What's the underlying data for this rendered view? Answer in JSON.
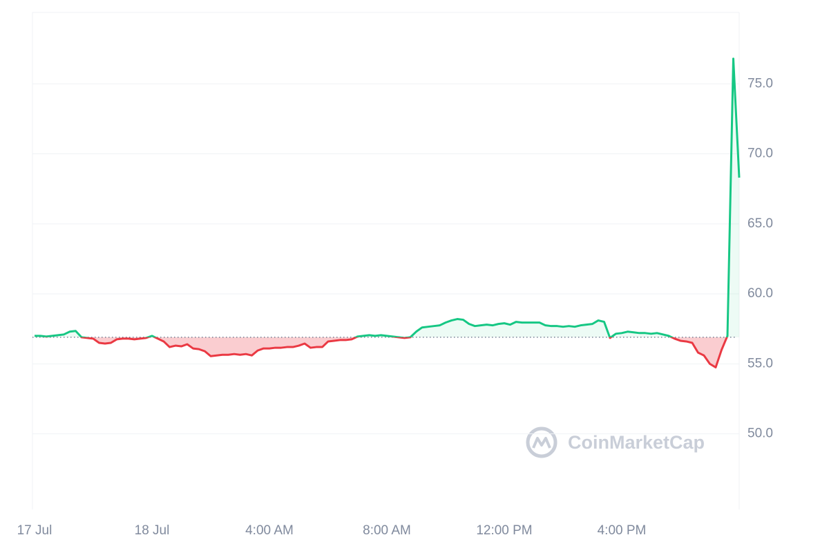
{
  "chart_data": {
    "type": "line",
    "watermark": "CoinMarketCap",
    "baseline": 56.9,
    "ylim": [
      44.6,
      80.1
    ],
    "yticks": [
      {
        "value": 50,
        "label": "50.0"
      },
      {
        "value": 55,
        "label": "55.0"
      },
      {
        "value": 60,
        "label": "60.0"
      },
      {
        "value": 65,
        "label": "65.0"
      },
      {
        "value": 70,
        "label": "70.0"
      },
      {
        "value": 75,
        "label": "75.0"
      }
    ],
    "xlim": [
      -0.35,
      120
    ],
    "xticks": [
      {
        "value": 0,
        "label": "17 Jul"
      },
      {
        "value": 20,
        "label": "18 Jul"
      },
      {
        "value": 40,
        "label": "4:00 AM"
      },
      {
        "value": 60,
        "label": "8:00 AM"
      },
      {
        "value": 80,
        "label": "12:00 PM"
      },
      {
        "value": 100,
        "label": "4:00 PM"
      }
    ],
    "grid": true,
    "up_color": "#16c784",
    "down_color": "#ea3943",
    "values": [
      57.0,
      57.0,
      56.95,
      57.0,
      57.05,
      57.1,
      57.3,
      57.35,
      56.9,
      56.85,
      56.8,
      56.5,
      56.45,
      56.5,
      56.75,
      56.8,
      56.8,
      56.75,
      56.8,
      56.85,
      57.0,
      56.8,
      56.6,
      56.2,
      56.3,
      56.25,
      56.4,
      56.1,
      56.05,
      55.9,
      55.55,
      55.6,
      55.65,
      55.65,
      55.7,
      55.65,
      55.7,
      55.6,
      55.95,
      56.1,
      56.1,
      56.15,
      56.15,
      56.2,
      56.2,
      56.3,
      56.45,
      56.15,
      56.2,
      56.2,
      56.6,
      56.65,
      56.7,
      56.7,
      56.75,
      56.95,
      57.0,
      57.05,
      57.0,
      57.05,
      57.0,
      56.95,
      56.9,
      56.85,
      56.9,
      57.3,
      57.6,
      57.65,
      57.7,
      57.75,
      57.95,
      58.1,
      58.2,
      58.15,
      57.85,
      57.7,
      57.75,
      57.8,
      57.75,
      57.85,
      57.9,
      57.8,
      58.0,
      57.95,
      57.95,
      57.95,
      57.95,
      57.75,
      57.7,
      57.7,
      57.65,
      57.7,
      57.65,
      57.75,
      57.8,
      57.85,
      58.1,
      58.0,
      56.85,
      57.15,
      57.2,
      57.3,
      57.25,
      57.2,
      57.2,
      57.15,
      57.2,
      57.1,
      57.0,
      56.8,
      56.65,
      56.6,
      56.5,
      55.8,
      55.6,
      55.0,
      54.75,
      56.0,
      57.0,
      76.8,
      68.3
    ]
  }
}
